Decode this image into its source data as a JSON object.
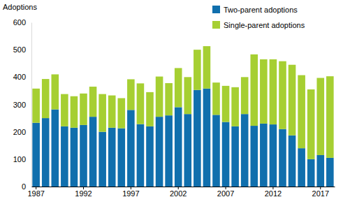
{
  "chart_data": {
    "type": "bar",
    "stacked": true,
    "legend": "top-right",
    "grid": false,
    "y_label": "Adoptions",
    "categories": [
      "1987",
      null,
      null,
      null,
      null,
      "1992",
      null,
      null,
      null,
      null,
      "1997",
      null,
      null,
      null,
      null,
      "2002",
      null,
      null,
      null,
      null,
      "2007",
      null,
      null,
      null,
      null,
      "2012",
      null,
      null,
      null,
      null,
      "2017",
      null
    ],
    "series": [
      {
        "name": "Two-parent adoptions",
        "color": "#106fad",
        "values": [
          233,
          250,
          282,
          220,
          215,
          225,
          255,
          200,
          215,
          213,
          280,
          228,
          220,
          255,
          260,
          290,
          265,
          353,
          358,
          262,
          236,
          220,
          265,
          222,
          230,
          227,
          210,
          187,
          140,
          100,
          115,
          105
        ]
      },
      {
        "name": "Single-parent adoptions",
        "color": "#a6cf32",
        "values": [
          125,
          143,
          128,
          118,
          115,
          115,
          110,
          138,
          118,
          110,
          112,
          149,
          125,
          147,
          118,
          143,
          135,
          147,
          155,
          118,
          132,
          143,
          135,
          261,
          235,
          238,
          248,
          258,
          267,
          255,
          282,
          298
        ]
      }
    ],
    "ylim": [
      0,
      600
    ],
    "yticks": [
      0,
      100,
      200,
      300,
      400,
      500,
      600
    ]
  }
}
